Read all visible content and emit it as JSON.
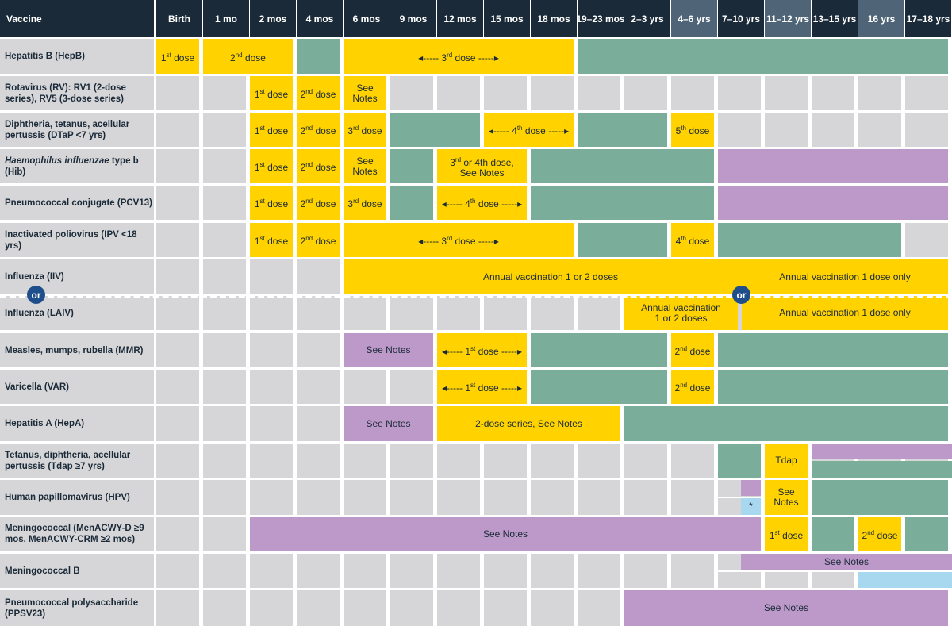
{
  "header": {
    "vaccine": "Vaccine",
    "ages": [
      "Birth",
      "1 mo",
      "2 mos",
      "4 mos",
      "6 mos",
      "9 mos",
      "12 mos",
      "15 mos",
      "18 mos",
      "19–23 mos",
      "2–3 yrs",
      "4–6 yrs",
      "7–10 yrs",
      "11–12 yrs",
      "13–15 yrs",
      "16 yrs",
      "17–18 yrs"
    ]
  },
  "rows": [
    {
      "name": "Hepatitis B (HepB)"
    },
    {
      "name": "Rotavirus (RV): RV1 (2-dose series), RV5 (3-dose series)"
    },
    {
      "name": "Diphtheria, tetanus, acellular pertussis (DTaP <7 yrs)"
    },
    {
      "name_italic": "Haemophilus influenzae",
      "name": " type b (Hib)"
    },
    {
      "name": "Pneumococcal conjugate (PCV13)"
    },
    {
      "name": "Inactivated poliovirus (IPV <18 yrs)"
    },
    {
      "name": "Influenza (IIV)"
    },
    {
      "name": "Influenza (LAIV)"
    },
    {
      "name": "Measles, mumps, rubella (MMR)"
    },
    {
      "name": "Varicella (VAR)"
    },
    {
      "name": "Hepatitis A (HepA)"
    },
    {
      "name": "Tetanus, diphtheria, acellular pertussis (Tdap ≥7 yrs)"
    },
    {
      "name": "Human papillomavirus (HPV)"
    },
    {
      "name": "Meningococcal (MenACWY-D ≥9 mos, MenACWY-CRM ≥2 mos)"
    },
    {
      "name": "Meningococcal B"
    },
    {
      "name": "Pneumococcal polysaccharide (PPSV23)"
    }
  ],
  "labels": {
    "dose1": "1st dose",
    "dose2": "2nd dose",
    "dose3": "3rd dose",
    "dose4": "4th dose",
    "dose5": "5th dose",
    "see_notes": "See Notes",
    "hib_34": "3rd or 4th dose,",
    "hib_34_b": "See Notes",
    "iiv_annual": "Annual vaccination 1 or 2 doses",
    "iiv_older": "Annual vaccination 1 dose only",
    "laiv_annual_a": "Annual vaccination",
    "laiv_annual_b": "1 or 2 doses",
    "laiv_older": "Annual vaccination 1 dose only",
    "hepa_series": "2-dose series, See Notes",
    "tdap": "Tdap",
    "hpv_notes_a": "See",
    "hpv_notes_b": "Notes",
    "asterisk": "*",
    "or": "or"
  },
  "colors": {
    "range_all": "#ffd200",
    "catch_up": "#7aae9b",
    "certain_high_risk": "#bc99c9",
    "shared_decision": "#a8d8f0",
    "not_recommended": "#d6d6d8",
    "header": "#1b2a38",
    "header_alt": "#4f6577",
    "or_badge": "#1e4e8c"
  }
}
